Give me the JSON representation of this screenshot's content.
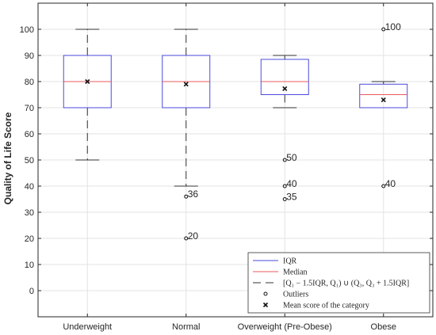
{
  "chart_data": {
    "type": "box",
    "ylabel": "Quality of Life Score",
    "ylim": [
      -10,
      110
    ],
    "yticks": [
      0,
      10,
      20,
      30,
      40,
      50,
      60,
      70,
      80,
      90,
      100
    ],
    "grid": true,
    "categories": [
      "Underweight",
      "Normal",
      "Overweight (Pre-Obese)",
      "Obese"
    ],
    "boxes": [
      {
        "category": "Underweight",
        "q1": 70,
        "median": 80,
        "q3": 90,
        "whisker_low": 50,
        "whisker_high": 100,
        "mean": 80,
        "outliers": []
      },
      {
        "category": "Normal",
        "q1": 70,
        "median": 80,
        "q3": 90,
        "whisker_low": 40,
        "whisker_high": 100,
        "mean": 79,
        "outliers": [
          36,
          20
        ]
      },
      {
        "category": "Overweight (Pre-Obese)",
        "q1": 75,
        "median": 80,
        "q3": 88.5,
        "whisker_low": 70,
        "whisker_high": 90,
        "mean": 77.3,
        "outliers": [
          50,
          40,
          35
        ]
      },
      {
        "category": "Obese",
        "q1": 70,
        "median": 75,
        "q3": 79,
        "whisker_low": 70,
        "whisker_high": 80,
        "mean": 73,
        "outliers": [
          100,
          40
        ]
      }
    ],
    "outlier_labels": [
      {
        "category": "Normal",
        "value": 36,
        "label": "36"
      },
      {
        "category": "Normal",
        "value": 20,
        "label": "20"
      },
      {
        "category": "Overweight (Pre-Obese)",
        "value": 50,
        "label": "50"
      },
      {
        "category": "Overweight (Pre-Obese)",
        "value": 40,
        "label": "40"
      },
      {
        "category": "Overweight (Pre-Obese)",
        "value": 35,
        "label": "35"
      },
      {
        "category": "Obese",
        "value": 100,
        "label": "100"
      },
      {
        "category": "Obese",
        "value": 40,
        "label": "40"
      }
    ],
    "legend": {
      "position": "bottom-right",
      "entries": [
        {
          "label": "IQR",
          "symbol": "line",
          "color": "#4a4adb"
        },
        {
          "label": "Median",
          "symbol": "line",
          "color": "#e8595c"
        },
        {
          "label": "[Q₁ − 1.5IQR, Q₁) ∪ (Q₃, Q₃ + 1.5IQR]",
          "symbol": "dash",
          "color": "#333333"
        },
        {
          "label": "Outliers",
          "symbol": "circle",
          "color": "#111111"
        },
        {
          "label": "Mean score of the category",
          "symbol": "cross",
          "color": "#111111"
        }
      ]
    },
    "colors": {
      "box": "#4a4adb",
      "median": "#e8595c",
      "whisker": "#333333",
      "grid": "#e3e3e3",
      "axis": "#262626"
    }
  }
}
